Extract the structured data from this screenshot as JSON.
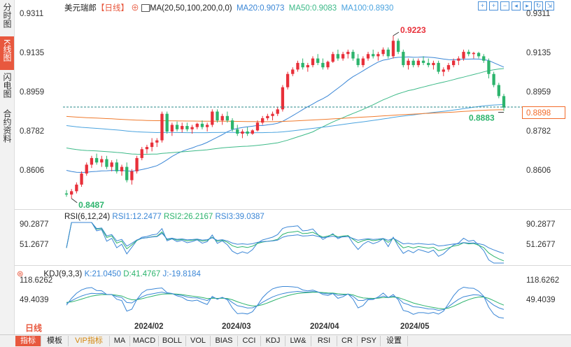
{
  "sidebar": {
    "tabs": [
      {
        "label": "分时图",
        "active": false
      },
      {
        "label": "K线图",
        "active": true
      },
      {
        "label": "闪电图",
        "active": false
      },
      {
        "label": "合约资料",
        "active": false
      }
    ]
  },
  "header": {
    "symbol": "美元瑞郎",
    "period": "【日线】",
    "ma_title": "MA(20,50,100,200,0,0)",
    "ma20": "MA20:0.9073",
    "ma50": "MA50:0.9083",
    "ma100": "MA100:0.8930"
  },
  "rsi_header": {
    "title": "RSI(6,12,24)",
    "rsi1": "RSI1:12.2477",
    "rsi2": "RSI2:26.2167",
    "rsi3": "RSI3:39.0387"
  },
  "kdj_header": {
    "title": "KDJ(9,3,3)",
    "k": "K:21.0450",
    "d": "D:41.4767",
    "j": "J:-19.8184"
  },
  "price_axis": [
    "0.9311",
    "0.9135",
    "0.8959",
    "0.8782",
    "0.8606"
  ],
  "rsi_axis": [
    "90.2877",
    "51.2677"
  ],
  "kdj_axis": [
    "118.6262",
    "49.4039"
  ],
  "current_price": "0.8898",
  "annotations": {
    "high": "0.9223",
    "low": "0.8487",
    "last_low": "0.8883"
  },
  "dates": [
    "2024/02",
    "2024/03",
    "2024/04",
    "2024/05"
  ],
  "period_button": "日线",
  "bottom_tabs": [
    "指标",
    "模板",
    "VIP指标",
    "MA",
    "MACD",
    "BOLL",
    "VOL",
    "BIAS",
    "CCI",
    "KDJ",
    "LW&",
    "RSI",
    "CR",
    "PSY",
    "设置"
  ],
  "colors": {
    "up": "#e8303a",
    "down": "#2db46d",
    "ma20": "#3a86d6",
    "ma50": "#3dba88",
    "ma100": "#4aa3df",
    "ma200": "#f07b2e",
    "accent": "#e8583e"
  },
  "chart_data": {
    "type": "candlestick",
    "title": "美元瑞郎 日线",
    "ylim": [
      0.848,
      0.934
    ],
    "candles": [
      [
        0.851,
        0.8525,
        0.8495,
        0.8505
      ],
      [
        0.8505,
        0.853,
        0.8487,
        0.852
      ],
      [
        0.852,
        0.856,
        0.851,
        0.855
      ],
      [
        0.855,
        0.861,
        0.854,
        0.86
      ],
      [
        0.86,
        0.865,
        0.859,
        0.864
      ],
      [
        0.864,
        0.868,
        0.8625,
        0.867
      ],
      [
        0.867,
        0.869,
        0.864,
        0.865
      ],
      [
        0.865,
        0.868,
        0.863,
        0.8665
      ],
      [
        0.8665,
        0.868,
        0.862,
        0.863
      ],
      [
        0.863,
        0.866,
        0.861,
        0.865
      ],
      [
        0.865,
        0.8665,
        0.86,
        0.861
      ],
      [
        0.861,
        0.864,
        0.859,
        0.863
      ],
      [
        0.863,
        0.865,
        0.856,
        0.857
      ],
      [
        0.857,
        0.862,
        0.855,
        0.861
      ],
      [
        0.861,
        0.868,
        0.86,
        0.867
      ],
      [
        0.867,
        0.872,
        0.866,
        0.871
      ],
      [
        0.871,
        0.873,
        0.869,
        0.872
      ],
      [
        0.872,
        0.876,
        0.87,
        0.874
      ],
      [
        0.874,
        0.876,
        0.872,
        0.875
      ],
      [
        0.875,
        0.888,
        0.874,
        0.887
      ],
      [
        0.887,
        0.888,
        0.878,
        0.879
      ],
      [
        0.879,
        0.883,
        0.877,
        0.882
      ],
      [
        0.882,
        0.8835,
        0.879,
        0.88
      ],
      [
        0.88,
        0.883,
        0.8785,
        0.8815
      ],
      [
        0.8815,
        0.883,
        0.879,
        0.88
      ],
      [
        0.88,
        0.882,
        0.878,
        0.881
      ],
      [
        0.881,
        0.883,
        0.88,
        0.8825
      ],
      [
        0.8825,
        0.884,
        0.88,
        0.881
      ],
      [
        0.881,
        0.883,
        0.879,
        0.882
      ],
      [
        0.882,
        0.889,
        0.881,
        0.888
      ],
      [
        0.888,
        0.889,
        0.883,
        0.884
      ],
      [
        0.884,
        0.887,
        0.882,
        0.886
      ],
      [
        0.886,
        0.888,
        0.883,
        0.884
      ],
      [
        0.884,
        0.885,
        0.879,
        0.88
      ],
      [
        0.88,
        0.882,
        0.877,
        0.878
      ],
      [
        0.878,
        0.88,
        0.876,
        0.879
      ],
      [
        0.879,
        0.881,
        0.877,
        0.878
      ],
      [
        0.878,
        0.88,
        0.8775,
        0.8795
      ],
      [
        0.8795,
        0.884,
        0.879,
        0.883
      ],
      [
        0.883,
        0.886,
        0.882,
        0.885
      ],
      [
        0.885,
        0.887,
        0.884,
        0.886
      ],
      [
        0.886,
        0.888,
        0.884,
        0.887
      ],
      [
        0.887,
        0.89,
        0.886,
        0.889
      ],
      [
        0.889,
        0.9,
        0.888,
        0.899
      ],
      [
        0.899,
        0.906,
        0.898,
        0.905
      ],
      [
        0.905,
        0.908,
        0.904,
        0.907
      ],
      [
        0.907,
        0.911,
        0.906,
        0.91
      ],
      [
        0.91,
        0.912,
        0.907,
        0.908
      ],
      [
        0.908,
        0.91,
        0.906,
        0.909
      ],
      [
        0.909,
        0.913,
        0.908,
        0.912
      ],
      [
        0.912,
        0.914,
        0.909,
        0.91
      ],
      [
        0.91,
        0.912,
        0.907,
        0.908
      ],
      [
        0.908,
        0.911,
        0.907,
        0.9105
      ],
      [
        0.9105,
        0.915,
        0.91,
        0.914
      ],
      [
        0.914,
        0.916,
        0.911,
        0.912
      ],
      [
        0.912,
        0.915,
        0.911,
        0.914
      ],
      [
        0.914,
        0.916,
        0.912,
        0.915
      ],
      [
        0.915,
        0.916,
        0.911,
        0.912
      ],
      [
        0.912,
        0.914,
        0.908,
        0.909
      ],
      [
        0.909,
        0.913,
        0.908,
        0.912
      ],
      [
        0.912,
        0.915,
        0.911,
        0.914
      ],
      [
        0.914,
        0.916,
        0.912,
        0.913
      ],
      [
        0.913,
        0.915,
        0.911,
        0.914
      ],
      [
        0.914,
        0.917,
        0.913,
        0.916
      ],
      [
        0.916,
        0.917,
        0.912,
        0.913
      ],
      [
        0.913,
        0.9223,
        0.912,
        0.92
      ],
      [
        0.92,
        0.921,
        0.914,
        0.915
      ],
      [
        0.915,
        0.916,
        0.908,
        0.909
      ],
      [
        0.909,
        0.912,
        0.907,
        0.911
      ],
      [
        0.911,
        0.912,
        0.908,
        0.909
      ],
      [
        0.909,
        0.912,
        0.908,
        0.911
      ],
      [
        0.911,
        0.913,
        0.909,
        0.91
      ],
      [
        0.91,
        0.912,
        0.908,
        0.909
      ],
      [
        0.909,
        0.911,
        0.907,
        0.91
      ],
      [
        0.91,
        0.911,
        0.905,
        0.906
      ],
      [
        0.906,
        0.908,
        0.904,
        0.907
      ],
      [
        0.907,
        0.91,
        0.906,
        0.909
      ],
      [
        0.909,
        0.912,
        0.908,
        0.911
      ],
      [
        0.911,
        0.913,
        0.909,
        0.912
      ],
      [
        0.912,
        0.916,
        0.911,
        0.915
      ],
      [
        0.915,
        0.916,
        0.913,
        0.914
      ],
      [
        0.914,
        0.915,
        0.912,
        0.9145
      ],
      [
        0.9145,
        0.915,
        0.912,
        0.913
      ],
      [
        0.913,
        0.914,
        0.91,
        0.911
      ],
      [
        0.911,
        0.912,
        0.903,
        0.905
      ],
      [
        0.905,
        0.906,
        0.899,
        0.9
      ],
      [
        0.9,
        0.901,
        0.894,
        0.895
      ],
      [
        0.895,
        0.896,
        0.8883,
        0.8898
      ]
    ],
    "rsi_ylim": [
      20,
      100
    ],
    "kdj_ylim": [
      -25,
      140
    ]
  }
}
